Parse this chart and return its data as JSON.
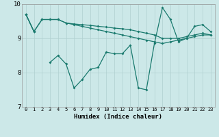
{
  "xlabel": "Humidex (Indice chaleur)",
  "xlim_min": -0.5,
  "xlim_max": 23.5,
  "ylim": [
    7,
    10
  ],
  "yticks": [
    7,
    8,
    9,
    10
  ],
  "xticks": [
    0,
    1,
    2,
    3,
    4,
    5,
    6,
    7,
    8,
    9,
    10,
    11,
    12,
    13,
    14,
    15,
    16,
    17,
    18,
    19,
    20,
    21,
    22,
    23
  ],
  "bg_color": "#cce8e8",
  "line_color": "#1a7a6e",
  "grid_color": "#b0d0d0",
  "series1": [
    9.7,
    9.2,
    9.55,
    9.55,
    9.55,
    9.45,
    9.42,
    9.4,
    9.38,
    9.35,
    9.33,
    9.3,
    9.28,
    9.25,
    9.2,
    9.15,
    9.1,
    9.0,
    9.0,
    9.0,
    9.05,
    9.1,
    9.15,
    9.1
  ],
  "series2": [
    9.7,
    9.2,
    9.55,
    9.55,
    9.55,
    9.45,
    9.4,
    9.35,
    9.3,
    9.25,
    9.2,
    9.15,
    9.1,
    9.05,
    9.0,
    8.95,
    8.9,
    8.85,
    8.9,
    8.95,
    9.0,
    9.05,
    9.1,
    9.1
  ],
  "series3": [
    9.7,
    9.2,
    null,
    8.3,
    8.5,
    8.25,
    7.55,
    7.8,
    8.1,
    8.15,
    8.6,
    8.55,
    8.55,
    8.8,
    7.55,
    7.5,
    8.85,
    9.9,
    9.55,
    8.9,
    9.0,
    9.35,
    9.4,
    9.2
  ]
}
